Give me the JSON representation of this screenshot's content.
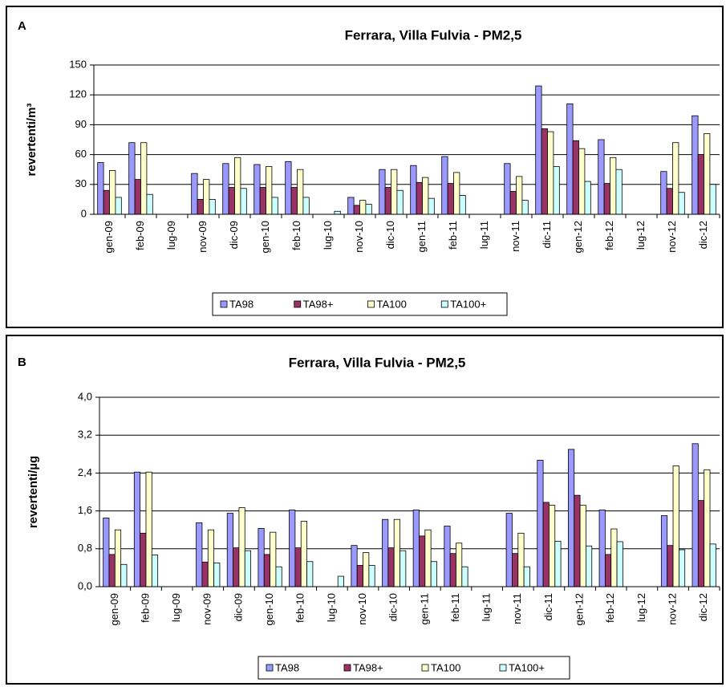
{
  "chart_data": [
    {
      "type": "bar",
      "panel": "A",
      "title": "Ferrara, Villa Fulvia - PM2,5",
      "y_label": "revertenti/m³",
      "categories": [
        "gen-09",
        "feb-09",
        "lug-09",
        "nov-09",
        "dic-09",
        "gen-10",
        "feb-10",
        "lug-10",
        "nov-10",
        "dic-10",
        "gen-11",
        "feb-11",
        "lug-11",
        "nov-11",
        "dic-11",
        "gen-12",
        "feb-12",
        "lug-12",
        "nov-12",
        "dic-12"
      ],
      "series": [
        {
          "name": "TA98",
          "color": "#9999ff",
          "values": [
            52,
            72,
            null,
            41,
            51,
            50,
            53,
            null,
            17,
            45,
            49,
            58,
            null,
            51,
            129,
            111,
            75,
            null,
            43,
            99
          ]
        },
        {
          "name": "TA98+",
          "color": "#993366",
          "values": [
            24,
            35,
            null,
            15,
            27,
            27,
            27,
            null,
            9,
            27,
            32,
            31,
            null,
            23,
            86,
            74,
            31,
            null,
            26,
            60
          ]
        },
        {
          "name": "TA100",
          "color": "#ffffcc",
          "values": [
            44,
            72,
            null,
            35,
            57,
            48,
            45,
            null,
            14,
            45,
            37,
            42,
            null,
            38,
            83,
            66,
            57,
            null,
            72,
            81
          ]
        },
        {
          "name": "TA100+",
          "color": "#ccffff",
          "values": [
            17,
            20,
            null,
            15,
            26,
            17,
            17,
            3,
            10,
            24,
            16,
            19,
            null,
            14,
            48,
            33,
            45,
            null,
            22,
            30
          ]
        }
      ],
      "ylim": [
        0,
        150
      ],
      "yticks": [
        0,
        30,
        60,
        90,
        120,
        150
      ],
      "grid": true,
      "legend": "bottom"
    },
    {
      "type": "bar",
      "panel": "B",
      "title": "Ferrara, Villa Fulvia - PM2,5",
      "y_label": "revertenti/µg",
      "categories": [
        "gen-09",
        "feb-09",
        "lug-09",
        "nov-09",
        "dic-09",
        "gen-10",
        "feb-10",
        "lug-10",
        "nov-10",
        "dic-10",
        "gen-11",
        "feb-11",
        "lug-11",
        "nov-11",
        "dic-11",
        "gen-12",
        "feb-12",
        "lug-12",
        "nov-12",
        "dic-12"
      ],
      "series": [
        {
          "name": "TA98",
          "color": "#9999ff",
          "values": [
            1.45,
            2.42,
            null,
            1.35,
            1.55,
            1.23,
            1.62,
            null,
            0.87,
            1.42,
            1.62,
            1.28,
            null,
            1.55,
            2.67,
            2.9,
            1.62,
            null,
            1.5,
            3.02
          ]
        },
        {
          "name": "TA98+",
          "color": "#993366",
          "values": [
            0.68,
            1.13,
            null,
            0.52,
            0.82,
            0.68,
            0.82,
            null,
            0.45,
            0.82,
            1.07,
            0.7,
            null,
            0.7,
            1.78,
            1.93,
            0.68,
            null,
            0.87,
            1.82
          ]
        },
        {
          "name": "TA100",
          "color": "#ffffcc",
          "values": [
            1.2,
            2.42,
            null,
            1.2,
            1.67,
            1.15,
            1.38,
            null,
            0.72,
            1.42,
            1.2,
            0.92,
            null,
            1.13,
            1.72,
            1.72,
            1.22,
            null,
            2.55,
            2.47
          ]
        },
        {
          "name": "TA100+",
          "color": "#ccffff",
          "values": [
            0.47,
            0.67,
            null,
            0.5,
            0.76,
            0.42,
            0.53,
            0.22,
            0.45,
            0.76,
            0.53,
            0.42,
            null,
            0.42,
            0.96,
            0.86,
            0.95,
            null,
            0.78,
            0.9
          ]
        }
      ],
      "ylim": [
        0,
        4
      ],
      "yticks": [
        {
          "value": 0,
          "label": "0,0"
        },
        {
          "value": 0.8,
          "label": "0,8"
        },
        {
          "value": 1.6,
          "label": "1,6"
        },
        {
          "value": 2.4,
          "label": "2,4"
        },
        {
          "value": 3.2,
          "label": "3,2"
        },
        {
          "value": 4,
          "label": "4,0"
        }
      ],
      "grid": true,
      "legend": "bottom"
    }
  ]
}
